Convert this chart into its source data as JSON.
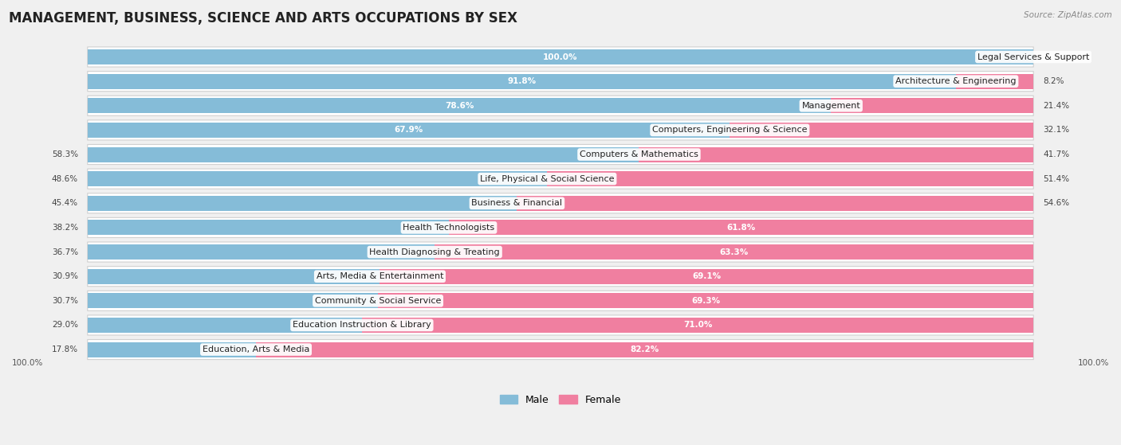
{
  "title": "MANAGEMENT, BUSINESS, SCIENCE AND ARTS OCCUPATIONS BY SEX",
  "source": "Source: ZipAtlas.com",
  "categories": [
    "Legal Services & Support",
    "Architecture & Engineering",
    "Management",
    "Computers, Engineering & Science",
    "Computers & Mathematics",
    "Life, Physical & Social Science",
    "Business & Financial",
    "Health Technologists",
    "Health Diagnosing & Treating",
    "Arts, Media & Entertainment",
    "Community & Social Service",
    "Education Instruction & Library",
    "Education, Arts & Media"
  ],
  "male": [
    100.0,
    91.8,
    78.6,
    67.9,
    58.3,
    48.6,
    45.4,
    38.2,
    36.7,
    30.9,
    30.7,
    29.0,
    17.8
  ],
  "female": [
    0.0,
    8.2,
    21.4,
    32.1,
    41.7,
    51.4,
    54.6,
    61.8,
    63.3,
    69.1,
    69.3,
    71.0,
    82.2
  ],
  "male_color": "#85bcd8",
  "female_color": "#f07fa0",
  "bg_color": "#f0f0f0",
  "bar_bg_color": "#ffffff",
  "row_bg_color": "#ffffff",
  "title_fontsize": 12,
  "label_fontsize": 8,
  "value_fontsize": 7.5,
  "bar_height": 0.62,
  "male_label_threshold": 60,
  "female_label_threshold": 55
}
